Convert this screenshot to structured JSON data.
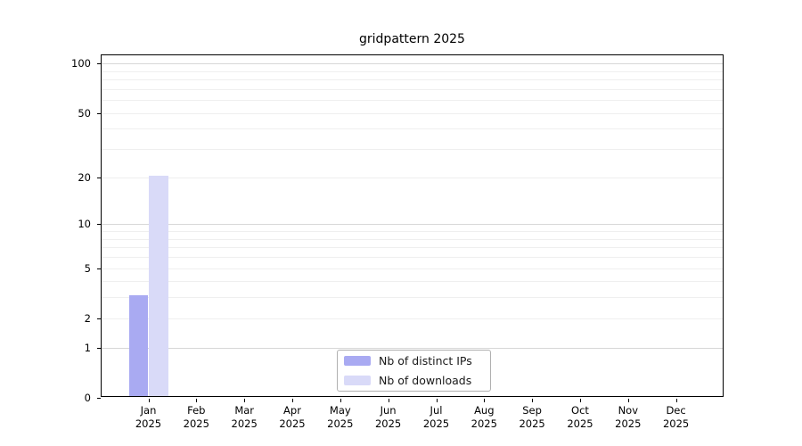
{
  "chart_data": {
    "type": "bar",
    "title": "gridpattern 2025",
    "categories": [
      "Jan",
      "Feb",
      "Mar",
      "Apr",
      "May",
      "Jun",
      "Jul",
      "Aug",
      "Sep",
      "Oct",
      "Nov",
      "Dec"
    ],
    "category_year": "2025",
    "series": [
      {
        "name": "Nb of distinct IPs",
        "color": "#a9aaf2",
        "values": [
          3,
          0,
          0,
          0,
          0,
          0,
          0,
          0,
          0,
          0,
          0,
          0
        ]
      },
      {
        "name": "Nb of downloads",
        "color": "#d9daf8",
        "values": [
          20,
          0,
          0,
          0,
          0,
          0,
          0,
          0,
          0,
          0,
          0,
          0
        ]
      }
    ],
    "xlabel": "",
    "ylabel": "",
    "yscale": "log1p",
    "ylim": [
      0,
      112
    ],
    "yticks": [
      0,
      1,
      2,
      5,
      10,
      20,
      50,
      100
    ],
    "grid": {
      "major": [
        1,
        10,
        100
      ],
      "minor": [
        2,
        3,
        4,
        5,
        6,
        7,
        8,
        9,
        20,
        30,
        40,
        50,
        60,
        70,
        80,
        90
      ]
    },
    "legend": {
      "position": "lower center",
      "entries": [
        "Nb of distinct IPs",
        "Nb of downloads"
      ]
    }
  },
  "colors": {
    "minor_grid": "#efefef",
    "major_grid": "#d7d7d7",
    "spine": "#000000",
    "legend_border": "#b0b0b0",
    "background": "#ffffff"
  }
}
